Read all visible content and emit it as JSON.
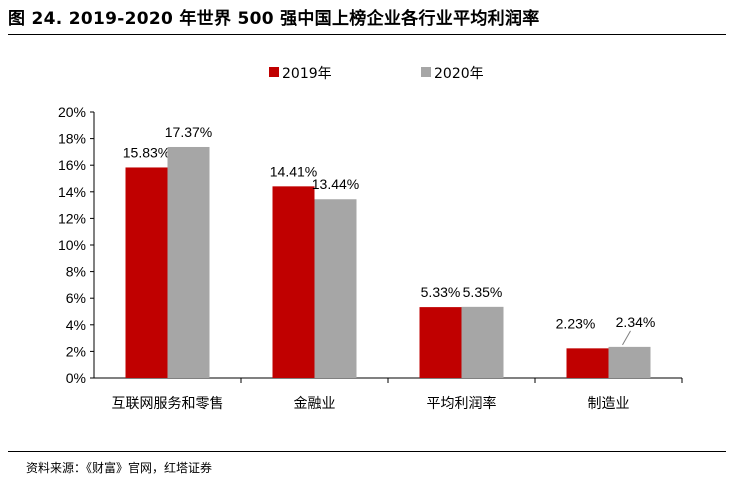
{
  "header": {
    "title": "图 24. 2019-2020 年世界 500 强中国上榜企业各行业平均利润率"
  },
  "footer": {
    "source": "资料来源：《财富》官网，红塔证券"
  },
  "chart_data": {
    "type": "bar",
    "categories": [
      "互联网服务和零售",
      "金融业",
      "平均利润率",
      "制造业"
    ],
    "series": [
      {
        "name": "2019年",
        "color": "#C00000",
        "values": [
          15.83,
          14.41,
          5.33,
          2.23
        ],
        "labels": [
          "15.83%",
          "14.41%",
          "5.33%",
          "2.23%"
        ]
      },
      {
        "name": "2020年",
        "color": "#A6A6A6",
        "values": [
          17.37,
          13.44,
          5.35,
          2.34
        ],
        "labels": [
          "17.37%",
          "13.44%",
          "5.35%",
          "2.34%"
        ]
      }
    ],
    "yticks": [
      "0%",
      "2%",
      "4%",
      "6%",
      "8%",
      "10%",
      "12%",
      "14%",
      "16%",
      "18%",
      "20%"
    ],
    "ylim": [
      0,
      20
    ],
    "xlabel": "",
    "ylabel": "",
    "grid": false,
    "legend_position": "top"
  }
}
